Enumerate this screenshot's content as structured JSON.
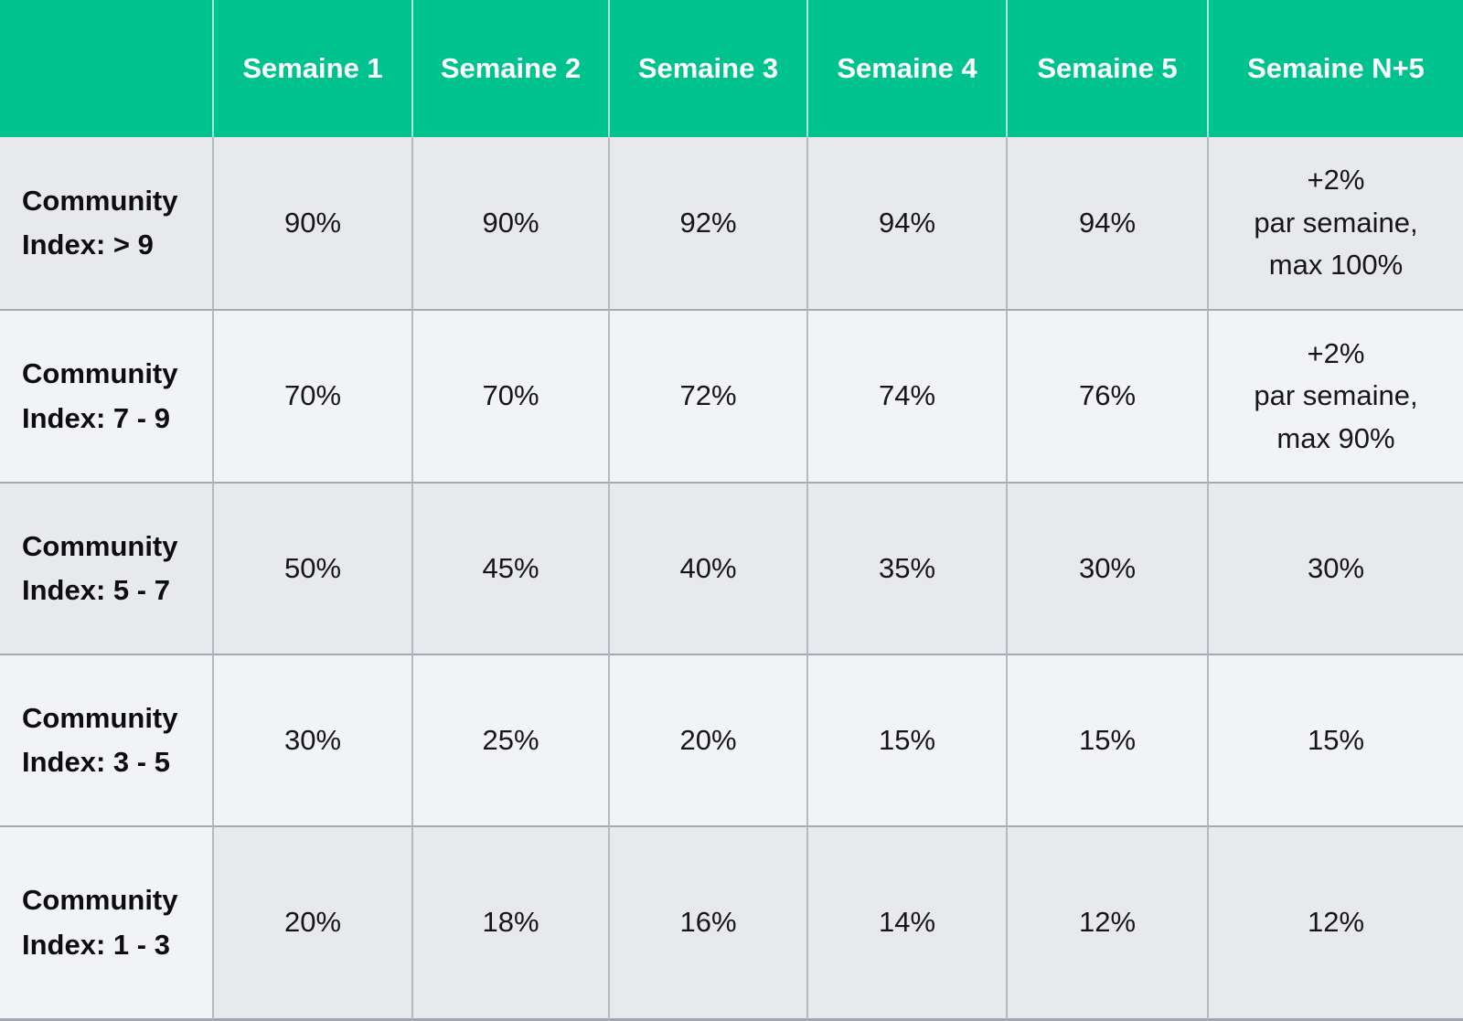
{
  "colors": {
    "header_bg": "#00C28F",
    "header_text": "#FFFFFF",
    "row_gray": "#E8E9EC",
    "row_light": "#F2F3F5",
    "grid_line": "#A7AAB4",
    "body_text": "#16161A"
  },
  "chart_data": {
    "type": "table",
    "columns": [
      "Semaine 1",
      "Semaine 2",
      "Semaine 3",
      "Semaine 4",
      "Semaine 5",
      "Semaine N+5"
    ],
    "rows": [
      {
        "label": "Community\nIndex: > 9",
        "values": [
          "90%",
          "90%",
          "92%",
          "94%",
          "94%",
          "+2%\npar semaine,\nmax 100%"
        ]
      },
      {
        "label": "Community\nIndex: 7 - 9",
        "values": [
          "70%",
          "70%",
          "72%",
          "74%",
          "76%",
          "+2%\npar semaine,\nmax 90%"
        ]
      },
      {
        "label": "Community\nIndex: 5 - 7",
        "values": [
          "50%",
          "45%",
          "40%",
          "35%",
          "30%",
          "30%"
        ]
      },
      {
        "label": "Community\nIndex: 3 - 5",
        "values": [
          "30%",
          "25%",
          "20%",
          "15%",
          "15%",
          "15%"
        ]
      },
      {
        "label": "Community\nIndex: 1 - 3",
        "values": [
          "20%",
          "18%",
          "16%",
          "14%",
          "12%",
          "12%"
        ]
      }
    ]
  }
}
